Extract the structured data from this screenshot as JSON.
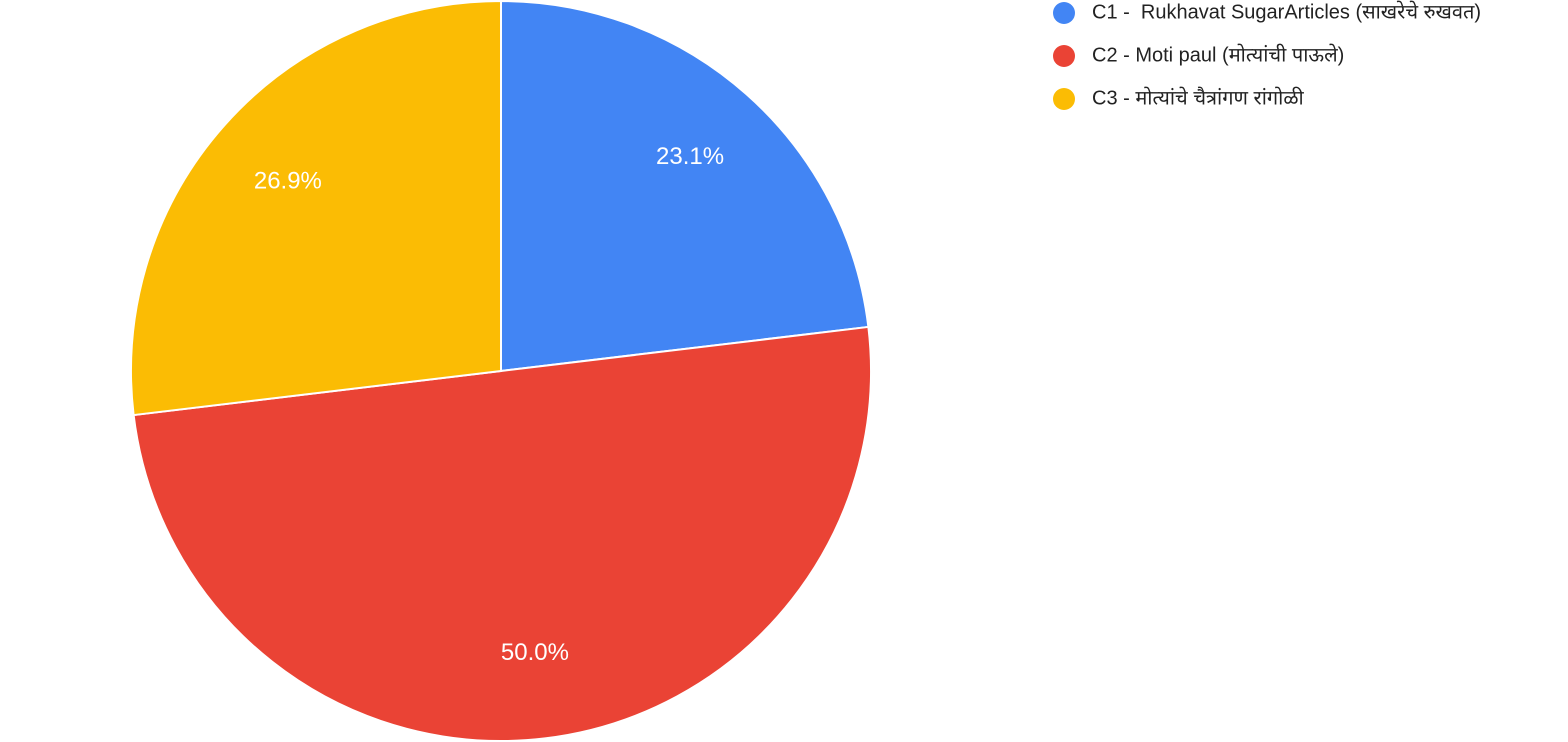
{
  "chart_data": {
    "type": "pie",
    "categories": [
      "C1 -  Rukhavat SugarArticles (साखरेचे रुखवत)",
      "C2 - Moti paul (मोत्यांची पाऊले)",
      "C3 - मोत्यांचे चैत्रांगण रांगोळी"
    ],
    "values": [
      23.1,
      50.0,
      26.9
    ],
    "value_labels": [
      "23.1%",
      "50.0%",
      "26.9%"
    ],
    "colors": [
      "#4285f4",
      "#ea4335",
      "#fbbc04"
    ],
    "legend": "top-right"
  }
}
